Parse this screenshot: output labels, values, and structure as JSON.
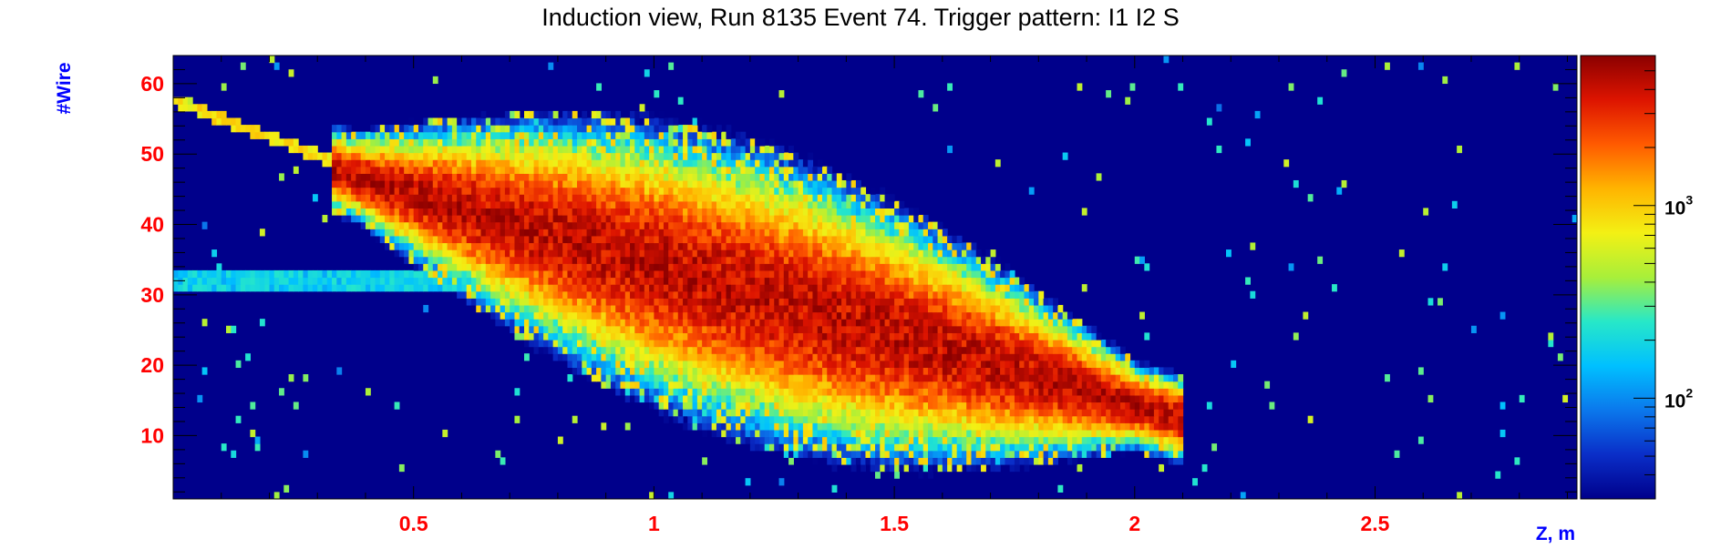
{
  "chart_data": {
    "type": "heatmap",
    "title": "Induction view, Run 8135 Event 74. Trigger pattern:  I1 I2 S",
    "xlabel": "Z, m",
    "ylabel": "#Wire",
    "xlim": [
      0,
      2.92
    ],
    "ylim": [
      1,
      64
    ],
    "x_ticks": [
      0.5,
      1,
      1.5,
      2,
      2.5
    ],
    "x_tick_labels": [
      "0.5",
      "1",
      "1.5",
      "2",
      "2.5"
    ],
    "y_ticks": [
      10,
      20,
      30,
      40,
      50,
      60
    ],
    "y_tick_labels": [
      "10",
      "20",
      "30",
      "40",
      "50",
      "60"
    ],
    "z_scale": "log",
    "z_range": [
      30,
      6000
    ],
    "colorbar_ticks": [
      {
        "value": 100,
        "base": "10",
        "exponent": "2"
      },
      {
        "value": 1000,
        "base": "10",
        "exponent": "3"
      }
    ],
    "colormap": [
      "#00008b",
      "#0a2ec8",
      "#0b78ec",
      "#00c0ff",
      "#27e8c8",
      "#a8ef3a",
      "#f3f014",
      "#ffb400",
      "#ff5a00",
      "#dd1400",
      "#8b0000"
    ],
    "background_color": "#00008b",
    "tick_color": "#ff0000",
    "axis_label_color": "#0000ff",
    "tracks": [
      {
        "name": "primary shower",
        "z_start": 0.38,
        "wire_start": 47,
        "z_end": 2.0,
        "wire_end": 14,
        "intensity": 5000
      },
      {
        "name": "incoming track",
        "z_start": 0.0,
        "wire_start": 58,
        "z_end": 0.38,
        "wire_start_end": 48,
        "wire_end": 48,
        "intensity": 900
      },
      {
        "name": "horizontal band",
        "z_start": 0.0,
        "wire_start": 32,
        "z_end": 0.75,
        "wire_end": 32,
        "intensity": 200
      }
    ]
  }
}
